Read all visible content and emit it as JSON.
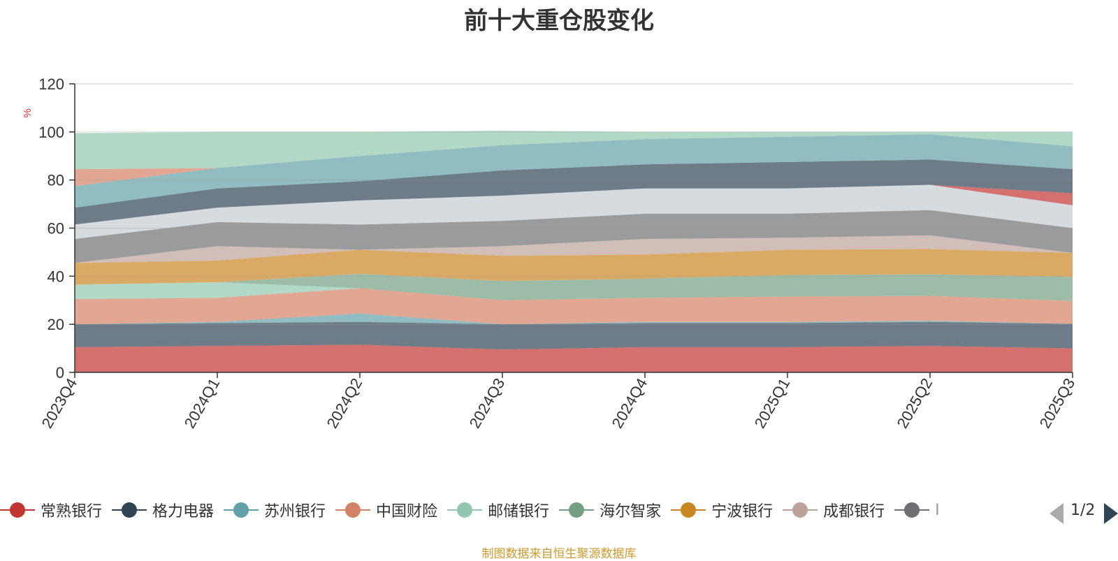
{
  "chart_data": {
    "type": "area",
    "stacked": true,
    "title": "前十大重仓股变化",
    "ylabel": "%",
    "ylim": [
      0,
      120
    ],
    "yticks": [
      0,
      20,
      40,
      60,
      80,
      100,
      120
    ],
    "categories": [
      "2023Q4",
      "2024Q1",
      "2024Q2",
      "2024Q3",
      "2024Q4",
      "2025Q1",
      "2025Q2",
      "2025Q3"
    ],
    "series": [
      {
        "name": "常熟银行",
        "color": "#c23531",
        "values": [
          10.5,
          11,
          11.5,
          9.5,
          10.5,
          10.5,
          11,
          10
        ]
      },
      {
        "name": "格力电器",
        "color": "#2f4554",
        "values": [
          9.5,
          9.5,
          9.5,
          10.5,
          10,
          10,
          10,
          10.2
        ]
      },
      {
        "name": "苏州银行",
        "color": "#61a0a8",
        "values": [
          0,
          0.5,
          3.5,
          0,
          0.5,
          0.5,
          0.5,
          0
        ]
      },
      {
        "name": "中国财险",
        "color": "#d48265",
        "values": [
          10.5,
          10,
          10.5,
          10,
          10,
          10.5,
          10.3,
          9.5
        ]
      },
      {
        "name": "邮储银行",
        "color": "#91c7ae",
        "values": [
          6,
          6.5,
          0,
          0,
          0,
          0,
          0,
          0
        ]
      },
      {
        "name": "海尔智家",
        "color": "#749f83",
        "values": [
          0,
          0,
          6,
          8,
          8,
          9,
          9,
          10
        ]
      },
      {
        "name": "宁波银行",
        "color": "#ca8622",
        "values": [
          9,
          9,
          10,
          10.5,
          10,
          10.5,
          10.5,
          10
        ]
      },
      {
        "name": "成都银行",
        "color": "#bda29a",
        "values": [
          0,
          6,
          0,
          4,
          6.5,
          5,
          5.7,
          0
        ]
      },
      {
        "name": "",
        "color": "#6e7074",
        "values": [
          10,
          10,
          10.5,
          10.5,
          10.5,
          10,
          10.5,
          10.3
        ]
      },
      {
        "name": "",
        "color": "#c4ccd3",
        "values": [
          6,
          6,
          10,
          10.5,
          10.5,
          10.5,
          10.5,
          9.5
        ]
      },
      {
        "name": "",
        "color": "#c23531",
        "values": [
          0,
          0,
          0,
          0,
          0,
          0,
          0,
          5
        ]
      },
      {
        "name": "",
        "color": "#2f4554",
        "values": [
          7,
          8,
          8,
          10.5,
          10,
          11,
          10.5,
          10
        ]
      },
      {
        "name": "",
        "color": "#61a0a8",
        "values": [
          9,
          8.5,
          10.5,
          10.5,
          10.5,
          10.5,
          10.5,
          9.5
        ]
      },
      {
        "name": "",
        "color": "#d48265",
        "values": [
          7,
          0,
          0,
          0,
          0,
          0,
          0,
          0
        ]
      },
      {
        "name": "",
        "color": "#91c7ae",
        "values": [
          15,
          15,
          10,
          6,
          3,
          2,
          1,
          6
        ]
      }
    ],
    "legend": {
      "position": "bottom",
      "page": "1/2"
    },
    "source_note": "制图数据来自恒生聚源数据库"
  },
  "legend_partial_label": "I"
}
